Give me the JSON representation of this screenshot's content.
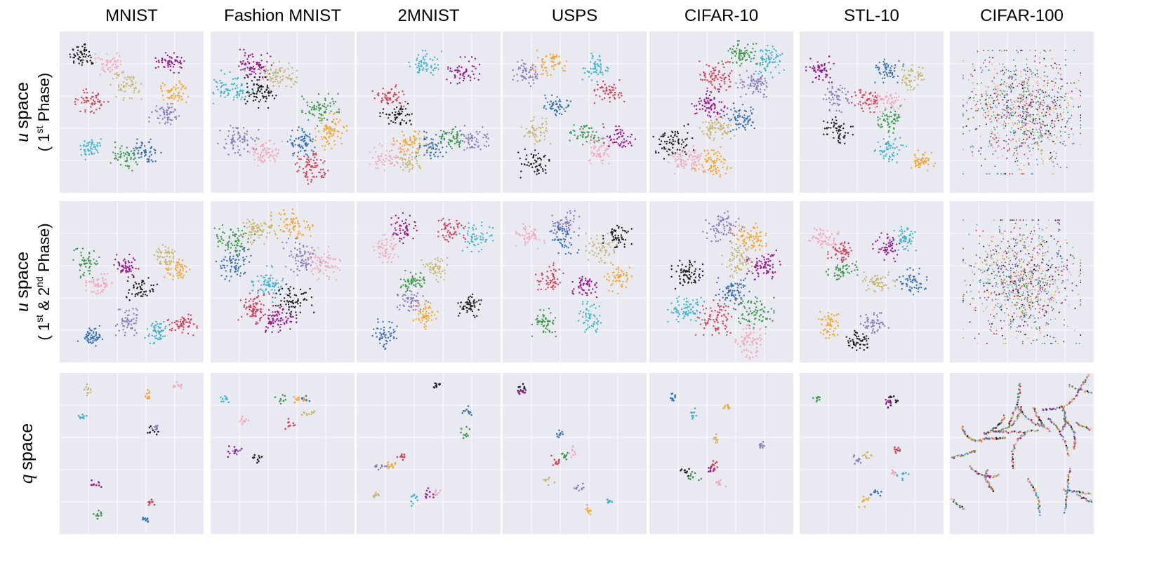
{
  "chart_data": {
    "type": "scatter",
    "title": "",
    "columns": [
      "MNIST",
      "Fashion MNIST",
      "2MNIST",
      "USPS",
      "CIFAR-10",
      "STL-10",
      "CIFAR-100"
    ],
    "rows": [
      {
        "var": "u",
        "word": "space",
        "sub_prefix": "( 1",
        "sup1": "st",
        "sub_mid": "",
        "sup2": "",
        "sub_suffix": " Phase)"
      },
      {
        "var": "u",
        "word": "space",
        "sub_prefix": "( 1",
        "sup1": "st",
        "sub_mid": " & 2",
        "sup2": "nd",
        "sub_suffix": " Phase)"
      },
      {
        "var": "q",
        "word": "space",
        "sub_prefix": "",
        "sup1": "",
        "sub_mid": "",
        "sup2": "",
        "sub_suffix": ""
      }
    ],
    "palette": [
      "#1f1f1f",
      "#8c7bbf",
      "#3571b5",
      "#3d9a4a",
      "#9b168c",
      "#d73d4f",
      "#f5a623",
      "#f3a7bc",
      "#3bb6cc",
      "#c8b56c",
      "#8b6b4e",
      "#8c8c8c",
      "#e87441"
    ],
    "grid": true,
    "legend": "none",
    "axes": "hidden"
  }
}
